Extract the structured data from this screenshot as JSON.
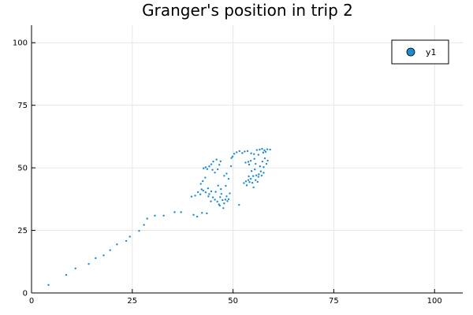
{
  "chart_data": {
    "type": "scatter",
    "title": "Granger's position in trip 2",
    "xlabel": "",
    "ylabel": "",
    "xlim": [
      0,
      107
    ],
    "ylim": [
      0,
      107
    ],
    "xticks": [
      0,
      25,
      50,
      75,
      100
    ],
    "yticks": [
      0,
      25,
      50,
      75,
      100
    ],
    "grid": true,
    "legend": {
      "placement": "top-right",
      "entries": [
        "y1"
      ]
    },
    "series": [
      {
        "name": "y1",
        "color": "#1f8bd1",
        "points": [
          [
            4.2,
            3.2
          ],
          [
            8.6,
            7.2
          ],
          [
            10.9,
            9.8
          ],
          [
            14.2,
            11.6
          ],
          [
            15.9,
            13.9
          ],
          [
            17.9,
            15.0
          ],
          [
            19.5,
            17.1
          ],
          [
            21.2,
            19.4
          ],
          [
            23.5,
            20.8
          ],
          [
            24.4,
            22.5
          ],
          [
            26.7,
            24.8
          ],
          [
            27.9,
            27.2
          ],
          [
            28.7,
            29.7
          ],
          [
            30.6,
            30.9
          ],
          [
            32.8,
            30.9
          ],
          [
            35.5,
            32.3
          ],
          [
            37.1,
            32.3
          ],
          [
            40.2,
            31.2
          ],
          [
            41.1,
            30.5
          ],
          [
            42.3,
            32.0
          ],
          [
            43.5,
            31.8
          ],
          [
            51.5,
            35.2
          ],
          [
            39.7,
            38.5
          ],
          [
            40.6,
            38.9
          ],
          [
            41.3,
            40.3
          ],
          [
            41.9,
            39.4
          ],
          [
            42.2,
            41.4
          ],
          [
            42.6,
            40.9
          ],
          [
            43.2,
            40.2
          ],
          [
            43.8,
            41.8
          ],
          [
            44.1,
            39.5
          ],
          [
            44.6,
            40.6
          ],
          [
            45.0,
            38.2
          ],
          [
            45.5,
            37.3
          ],
          [
            46.1,
            36.5
          ],
          [
            46.5,
            35.4
          ],
          [
            46.8,
            38.3
          ],
          [
            47.1,
            39.6
          ],
          [
            47.4,
            37.1
          ],
          [
            47.8,
            35.8
          ],
          [
            48.1,
            37.3
          ],
          [
            48.4,
            38.6
          ],
          [
            47.0,
            41.5
          ],
          [
            46.3,
            42.9
          ],
          [
            45.7,
            40.4
          ],
          [
            44.5,
            36.6
          ],
          [
            43.9,
            38.6
          ],
          [
            48.6,
            36.7
          ],
          [
            42.0,
            43.6
          ],
          [
            42.5,
            44.7
          ],
          [
            43.1,
            46.1
          ],
          [
            43.6,
            49.5
          ],
          [
            44.1,
            50.6
          ],
          [
            44.6,
            51.4
          ],
          [
            43.2,
            50.2
          ],
          [
            42.7,
            49.8
          ],
          [
            44.9,
            49.2
          ],
          [
            45.5,
            48.1
          ],
          [
            46.2,
            49.4
          ],
          [
            46.6,
            51.2
          ],
          [
            46.9,
            52.6
          ],
          [
            45.9,
            53.3
          ],
          [
            45.1,
            52.5
          ],
          [
            47.8,
            46.8
          ],
          [
            48.4,
            47.7
          ],
          [
            48.9,
            45.6
          ],
          [
            48.2,
            42.8
          ],
          [
            49.5,
            50.7
          ],
          [
            49.6,
            53.9
          ],
          [
            49.9,
            54.5
          ],
          [
            50.3,
            55.6
          ],
          [
            50.9,
            56.2
          ],
          [
            51.6,
            56.7
          ],
          [
            52.3,
            55.9
          ],
          [
            52.9,
            56.5
          ],
          [
            53.6,
            56.7
          ],
          [
            54.5,
            55.8
          ],
          [
            55.2,
            55.5
          ],
          [
            55.9,
            57.1
          ],
          [
            56.6,
            57.3
          ],
          [
            57.2,
            57.6
          ],
          [
            57.8,
            57.0
          ],
          [
            58.1,
            56.4
          ],
          [
            58.5,
            57.4
          ],
          [
            59.2,
            57.3
          ],
          [
            57.5,
            56.1
          ],
          [
            56.3,
            55.2
          ],
          [
            55.3,
            53.6
          ],
          [
            54.4,
            52.8
          ],
          [
            53.8,
            52.4
          ],
          [
            53.1,
            52.1
          ],
          [
            54.0,
            51.3
          ],
          [
            55.6,
            51.6
          ],
          [
            56.7,
            50.6
          ],
          [
            57.3,
            52.5
          ],
          [
            57.9,
            53.8
          ],
          [
            58.6,
            52.9
          ],
          [
            58.3,
            51.6
          ],
          [
            57.6,
            50.3
          ],
          [
            56.9,
            48.6
          ],
          [
            56.4,
            47.4
          ],
          [
            55.8,
            47.0
          ],
          [
            55.0,
            46.7
          ],
          [
            54.4,
            45.6
          ],
          [
            53.8,
            45.1
          ],
          [
            53.2,
            44.6
          ],
          [
            52.7,
            43.9
          ],
          [
            53.4,
            43.0
          ],
          [
            54.1,
            44.3
          ],
          [
            54.8,
            44.0
          ],
          [
            55.6,
            45.1
          ],
          [
            56.3,
            46.4
          ],
          [
            57.1,
            46.9
          ],
          [
            57.6,
            48.0
          ],
          [
            54.6,
            48.7
          ],
          [
            55.4,
            49.4
          ],
          [
            53.9,
            46.6
          ],
          [
            55.1,
            42.2
          ],
          [
            56.1,
            44.4
          ],
          [
            48.9,
            37.5
          ],
          [
            49.2,
            39.8
          ],
          [
            46.7,
            34.9
          ],
          [
            47.6,
            33.9
          ]
        ]
      }
    ]
  }
}
